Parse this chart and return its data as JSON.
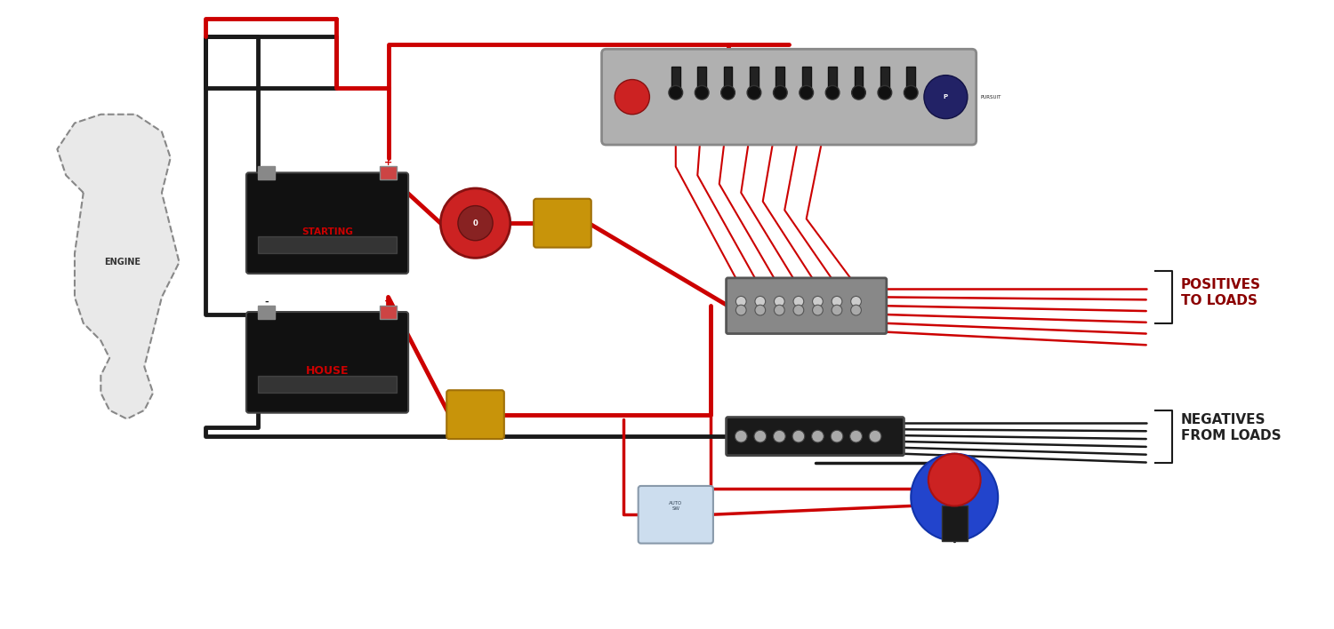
{
  "bg_color": "#ffffff",
  "title": "",
  "fig_width": 15.0,
  "fig_height": 7.08,
  "wire_red": "#cc0000",
  "wire_black": "#1a1a1a",
  "wire_lw": 2.5,
  "wire_lw_thick": 3.5,
  "label_positives": "POSITIVES\nTO LOADS",
  "label_negatives": "NEGATIVES\nFROM LOADS",
  "label_color_pos": "#8b0000",
  "label_color_neg": "#222222",
  "label_fontsize": 11,
  "engine_label": "ENGINE",
  "starting_label": "STARTING",
  "house_label": "HOUSE",
  "plus_label": "+",
  "minus_label": "-",
  "pursuit_label": "PURSUIT"
}
